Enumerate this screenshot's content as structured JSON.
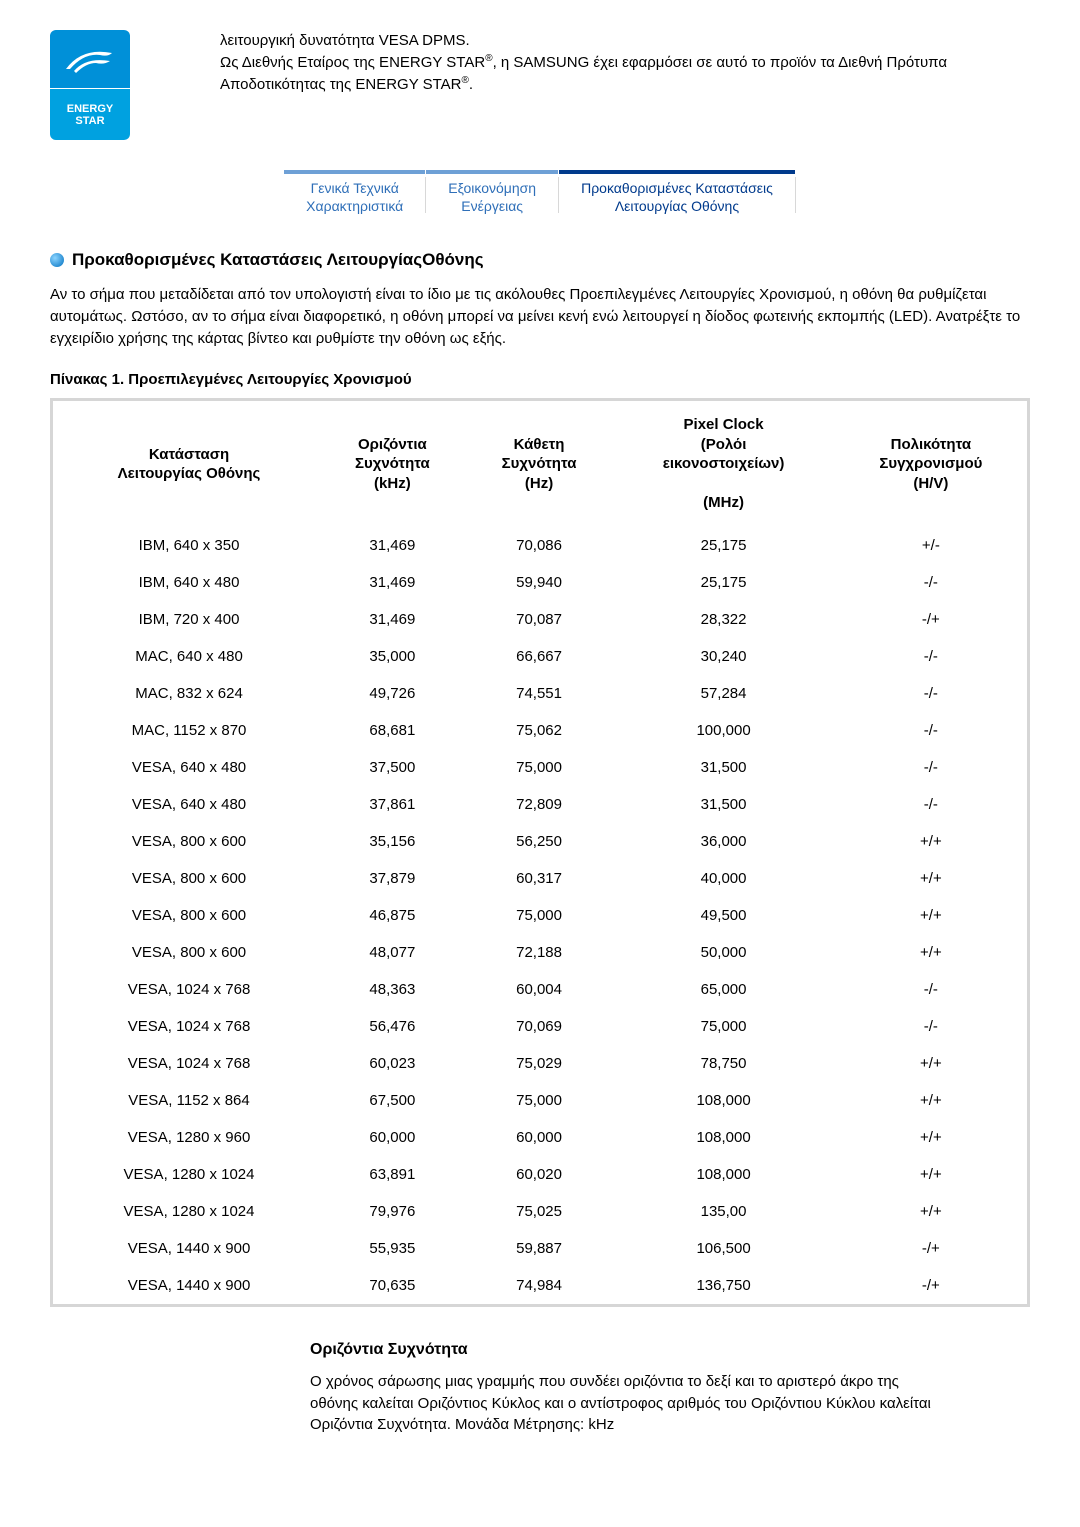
{
  "logo": {
    "line1": "ENERGY",
    "line2": "STAR"
  },
  "intro": {
    "l1": "λειτουργική δυνατότητα VESA DPMS.",
    "l2a": "Ως Διεθνής Εταίρος της ENERGY STAR",
    "l2b": ", η SAMSUNG έχει εφαρμόσει σε αυτό το προϊόν τα Διεθνή Πρότυπα Αποδοτικότητας της ENERGY STAR",
    "l2c": ".",
    "reg": "®"
  },
  "tabs": {
    "t1a": "Γενικά Τεχνικά",
    "t1b": "Χαρακτηριστικά",
    "t2a": "Εξοικονόμηση",
    "t2b": "Ενέργειας",
    "t3a": "Προκαθορισμένες Καταστάσεις",
    "t3b": "Λειτουργίας Οθόνης"
  },
  "section_title": "Προκαθορισμένες Καταστάσεις ΛειτουργίαςΟθόνης",
  "paragraph": "Αν το σήμα που μεταδίδεται από τον υπολογιστή είναι το ίδιο με τις ακόλουθες Προεπιλεγμένες Λειτουργίες Χρονισμού, η οθόνη θα ρυθμίζεται αυτομάτως. Ωστόσο, αν το σήμα είναι διαφορετικό, η οθόνη μπορεί να μείνει κενή ενώ λειτουργεί η δίοδος φωτεινής εκπομπής (LED). Ανατρέξτε το εγχειρίδιο χρήσης της κάρτας βίντεο και ρυθμίστε την οθόνη ως εξής.",
  "table_title": "Πίνακας 1. Προεπιλεγμένες Λειτουργίες Χρονισμού",
  "cols": {
    "c1a": "Κατάσταση",
    "c1b": "Λειτουργίας Οθόνης",
    "c2a": "Οριζόντια",
    "c2b": "Συχνότητα",
    "c2c": "(kHz)",
    "c3a": "Κάθετη",
    "c3b": "Συχνότητα",
    "c3c": "(Hz)",
    "c4a": "Pixel Clock",
    "c4b": "(Ρολόι",
    "c4c": "εικονοστοιχείων)",
    "c4d": "(MHz)",
    "c5a": "Πολικότητα",
    "c5b": "Συγχρονισμού",
    "c5c": "(H/V)"
  },
  "rows": [
    [
      "IBM, 640 x 350",
      "31,469",
      "70,086",
      "25,175",
      "+/-"
    ],
    [
      "IBM, 640 x 480",
      "31,469",
      "59,940",
      "25,175",
      "-/-"
    ],
    [
      "IBM, 720 x 400",
      "31,469",
      "70,087",
      "28,322",
      "-/+"
    ],
    [
      "MAC, 640 x 480",
      "35,000",
      "66,667",
      "30,240",
      "-/-"
    ],
    [
      "MAC, 832 x 624",
      "49,726",
      "74,551",
      "57,284",
      "-/-"
    ],
    [
      "MAC, 1152 x 870",
      "68,681",
      "75,062",
      "100,000",
      "-/-"
    ],
    [
      "VESA, 640 x 480",
      "37,500",
      "75,000",
      "31,500",
      "-/-"
    ],
    [
      "VESA, 640 x 480",
      "37,861",
      "72,809",
      "31,500",
      "-/-"
    ],
    [
      "VESA, 800 x 600",
      "35,156",
      "56,250",
      "36,000",
      "+/+"
    ],
    [
      "VESA, 800 x 600",
      "37,879",
      "60,317",
      "40,000",
      "+/+"
    ],
    [
      "VESA, 800 x 600",
      "46,875",
      "75,000",
      "49,500",
      "+/+"
    ],
    [
      "VESA, 800 x 600",
      "48,077",
      "72,188",
      "50,000",
      "+/+"
    ],
    [
      "VESA, 1024 x 768",
      "48,363",
      "60,004",
      "65,000",
      "-/-"
    ],
    [
      "VESA, 1024 x 768",
      "56,476",
      "70,069",
      "75,000",
      "-/-"
    ],
    [
      "VESA, 1024 x 768",
      "60,023",
      "75,029",
      "78,750",
      "+/+"
    ],
    [
      "VESA, 1152 x 864",
      "67,500",
      "75,000",
      "108,000",
      "+/+"
    ],
    [
      "VESA, 1280 x 960",
      "60,000",
      "60,000",
      "108,000",
      "+/+"
    ],
    [
      "VESA, 1280 x 1024",
      "63,891",
      "60,020",
      "108,000",
      "+/+"
    ],
    [
      "VESA, 1280 x 1024",
      "79,976",
      "75,025",
      "135,00",
      "+/+"
    ],
    [
      "VESA, 1440 x 900",
      "55,935",
      "59,887",
      "106,500",
      "-/+"
    ],
    [
      "VESA, 1440 x 900",
      "70,635",
      "74,984",
      "136,750",
      "-/+"
    ]
  ],
  "def": {
    "title": "Οριζόντια Συχνότητα",
    "body": "Ο χρόνος σάρωσης μιας γραμμής που συνδέει οριζόντια το δεξί και το αριστερό άκρο της οθόνης καλείται Οριζόντιος Κύκλος και ο αντίστροφος αριθμός του Οριζόντιου Κύκλου καλείται Οριζόντια Συχνότητα. Μονάδα Μέτρησης: kHz"
  }
}
